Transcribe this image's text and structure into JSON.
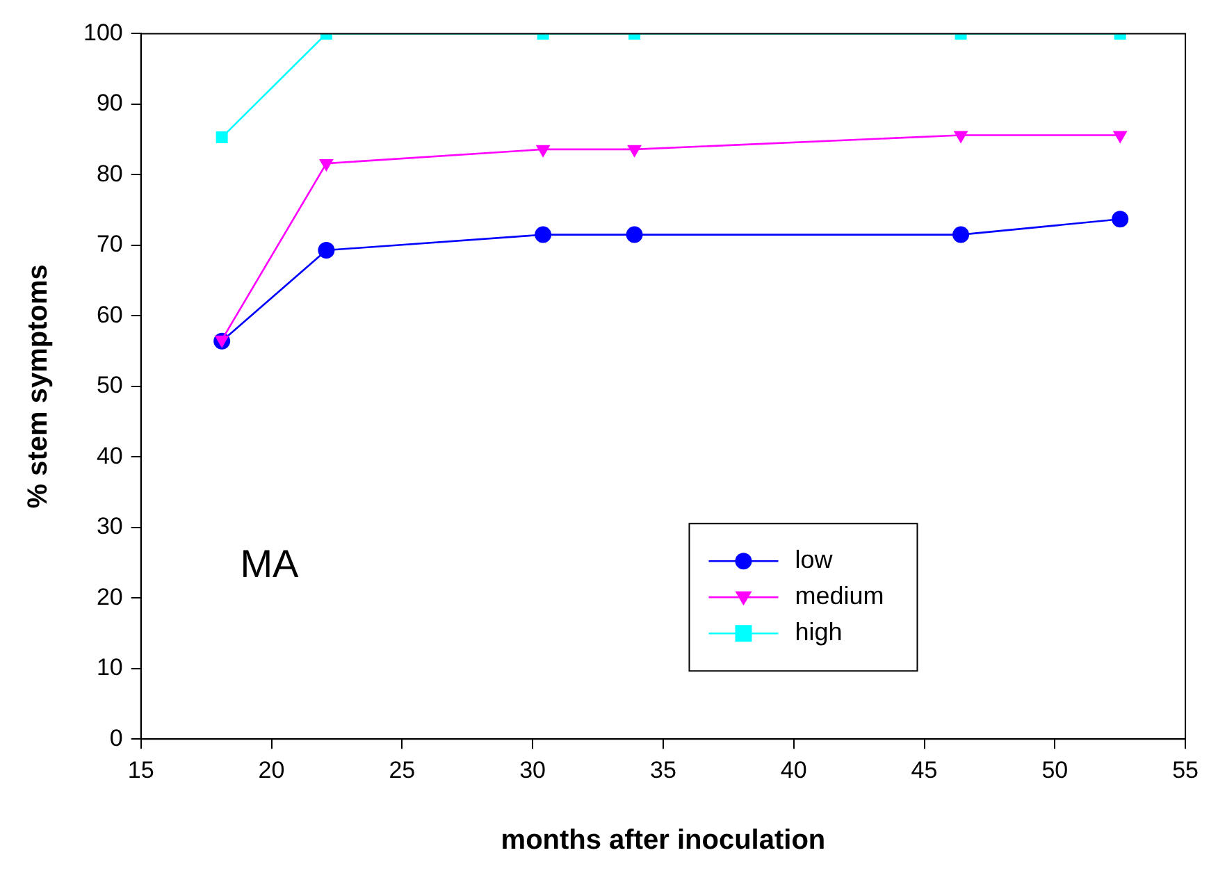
{
  "chart_data": {
    "type": "line",
    "xlabel": "months after inoculation",
    "ylabel": "% stem symptoms",
    "xlim": [
      15,
      55
    ],
    "xticks": [
      15,
      20,
      25,
      30,
      35,
      40,
      45,
      50,
      55
    ],
    "ylim": [
      0,
      100
    ],
    "yticks": [
      0,
      10,
      20,
      30,
      40,
      50,
      60,
      70,
      80,
      90,
      100
    ],
    "grid": false,
    "legend": "bottom right",
    "annotations": [
      "MA"
    ],
    "x": [
      18.1,
      22.1,
      30.4,
      33.9,
      46.4,
      52.5
    ],
    "series": [
      {
        "name": "low",
        "color": "#0000ff",
        "marker": "circle",
        "values": [
          56.4,
          69.3,
          71.5,
          71.5,
          71.5,
          73.7
        ]
      },
      {
        "name": "medium",
        "color": "#ff00ff",
        "marker": "triangle",
        "values": [
          56.6,
          81.6,
          83.6,
          83.6,
          85.6,
          85.6
        ]
      },
      {
        "name": "high",
        "color": "#00ffff",
        "marker": "square",
        "values": [
          85.3,
          100,
          100,
          100,
          100,
          100
        ]
      }
    ]
  }
}
